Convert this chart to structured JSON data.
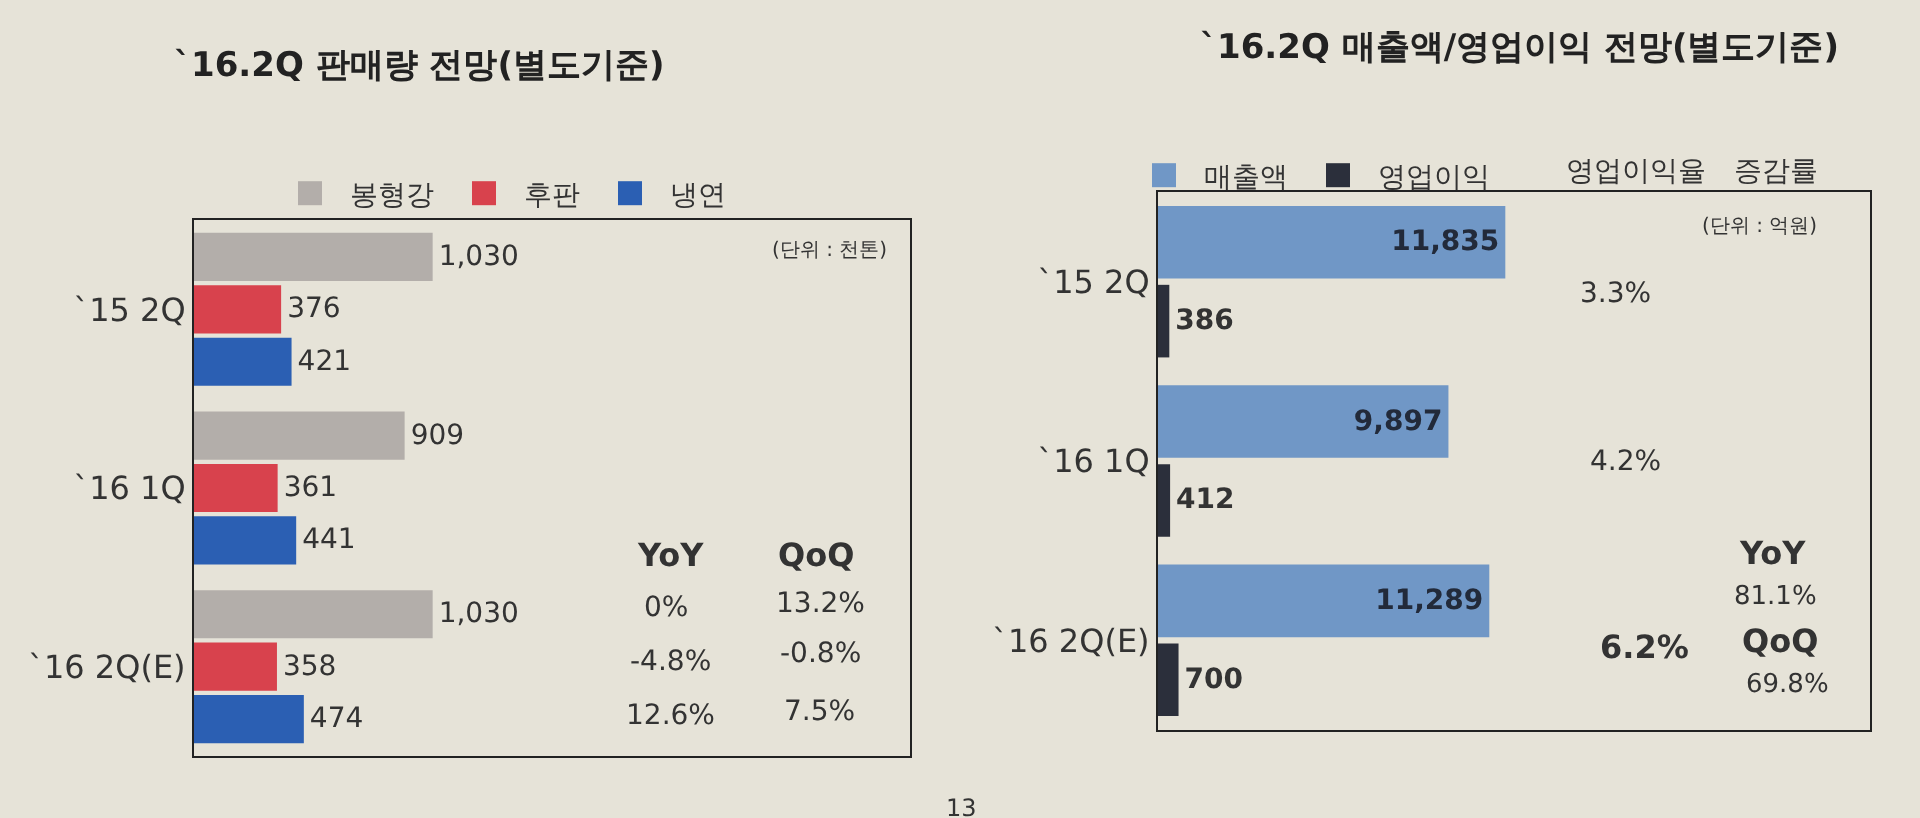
{
  "chart_data": [
    {
      "type": "bar",
      "orientation": "horizontal",
      "title": "`16.2Q 판매량 전망(별도기준)",
      "categories": [
        "`15 2Q",
        "`16 1Q",
        "`16 2Q(E)"
      ],
      "legend": "top",
      "grid": false,
      "series": [
        {
          "name": "봉형강",
          "color": "#b3aeaa",
          "values": [
            1030,
            909,
            1030
          ],
          "value_labels": [
            "1,030",
            "909",
            "1,030"
          ]
        },
        {
          "name": "후판",
          "color": "#d8424d",
          "values": [
            376,
            361,
            358
          ],
          "value_labels": [
            "376",
            "361",
            "358"
          ]
        },
        {
          "name": "냉연",
          "color": "#2b5fb3",
          "values": [
            421,
            441,
            474
          ],
          "value_labels": [
            "421",
            "441",
            "474"
          ]
        }
      ],
      "annotations": [
        "(단위 : 천톤)",
        "YoY",
        "QoQ",
        "0%",
        "13.2%",
        "-4.8%",
        "-0.8%",
        "12.6%",
        "7.5%"
      ]
    },
    {
      "type": "bar",
      "orientation": "horizontal",
      "title": "`16.2Q 매출액/영업이익 전망(별도기준)",
      "categories": [
        "`15 2Q",
        "`16 1Q",
        "`16 2Q(E)"
      ],
      "legend": "top",
      "grid": false,
      "series": [
        {
          "name": "매출액",
          "color": "#7097c6",
          "values": [
            11835,
            9897,
            11289
          ],
          "value_labels": [
            "11,835",
            "9,897",
            "11,289"
          ]
        },
        {
          "name": "영업이익",
          "color": "#2b2f3b",
          "values": [
            386,
            412,
            700
          ],
          "value_labels": [
            "386",
            "412",
            "700"
          ]
        }
      ],
      "annotations": [
        "영업이익율",
        "증감률",
        "(단위 : 억원)",
        "3.3%",
        "4.2%",
        "6.2%",
        "YoY",
        "81.1%",
        "QoQ",
        "69.8%",
        "13"
      ]
    }
  ]
}
